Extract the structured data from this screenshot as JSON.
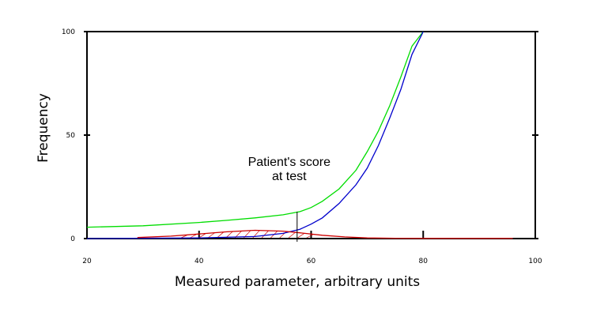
{
  "chart_data": {
    "type": "line",
    "title": "",
    "xlabel": "Measured parameter, arbitrary units",
    "ylabel": "Frequency",
    "xlim": [
      20,
      100
    ],
    "ylim": [
      0,
      100
    ],
    "x_ticks": [
      "20",
      "40",
      "60",
      "80",
      "100"
    ],
    "y_ticks": [
      "0",
      "50",
      "100"
    ],
    "grid": false,
    "legend": "none",
    "series": [
      {
        "color": "#00dd00",
        "x": [
          20,
          30,
          40,
          45,
          50,
          55,
          58,
          60,
          62,
          65,
          68,
          70,
          72,
          74,
          76,
          78,
          80
        ],
        "y": [
          5.5,
          6.2,
          7.8,
          8.8,
          10,
          11.5,
          13,
          15,
          18,
          24,
          33,
          42,
          52,
          64,
          78,
          93,
          100
        ]
      },
      {
        "color": "#0000cc",
        "x": [
          20,
          40,
          50,
          55,
          58,
          60,
          62,
          65,
          68,
          70,
          72,
          74,
          76,
          78,
          80
        ],
        "y": [
          0,
          0.3,
          1,
          2.5,
          4.5,
          7,
          10,
          17,
          26,
          34,
          45,
          58,
          72,
          89,
          100
        ]
      },
      {
        "color": "#cc0000",
        "x": [
          29,
          35,
          40,
          45,
          50,
          55,
          58,
          62,
          66,
          70,
          75,
          80,
          90,
          96
        ],
        "y": [
          0.5,
          1.2,
          2.2,
          3.3,
          4,
          3.6,
          2.8,
          1.6,
          0.8,
          0.3,
          0.15,
          0.1,
          0.1,
          0.1
        ]
      }
    ],
    "annotations": [
      {
        "lines": [
          "Patient's score",
          "at test"
        ],
        "x": 57.5,
        "y": 13
      }
    ]
  }
}
